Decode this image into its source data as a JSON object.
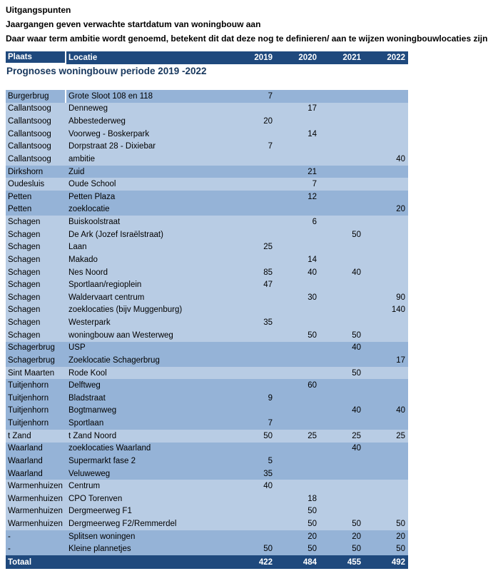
{
  "notes": {
    "line1": "Uitgangspunten",
    "line2": "Jaargangen geven verwachte startdatum van woningbouw aan",
    "line3": "Daar waar term ambitie wordt genoemd, betekent dit dat deze nog te definieren/ aan te wijzen woningbouwlocaties zijn"
  },
  "table": {
    "title": "Prognoses woningbouw periode 2019 -2022",
    "columns": [
      "Plaats",
      "Locatie",
      "2019",
      "2020",
      "2021",
      "2022"
    ],
    "colors": {
      "header_bg": "#1F497D",
      "header_text": "#FFFFFF",
      "row_medium": "#95B3D7",
      "row_light": "#B8CCE4",
      "total_bg": "#1F497D",
      "title_text": "#17375D",
      "body_text": "#000000"
    },
    "rows": [
      {
        "plaats": "Burgerbrug",
        "locatie": "Grote Sloot 108 en 118",
        "y2019": "7",
        "y2020": "",
        "y2021": "",
        "y2022": "",
        "shade": "medium"
      },
      {
        "plaats": "Callantsoog",
        "locatie": "Denneweg",
        "y2019": "",
        "y2020": "17",
        "y2021": "",
        "y2022": "",
        "shade": "light"
      },
      {
        "plaats": "Callantsoog",
        "locatie": "Abbestederweg",
        "y2019": "20",
        "y2020": "",
        "y2021": "",
        "y2022": "",
        "shade": "light"
      },
      {
        "plaats": "Callantsoog",
        "locatie": "Voorweg - Boskerpark",
        "y2019": "",
        "y2020": "14",
        "y2021": "",
        "y2022": "",
        "shade": "light"
      },
      {
        "plaats": "Callantsoog",
        "locatie": "Dorpstraat 28 - Dixiebar",
        "y2019": "7",
        "y2020": "",
        "y2021": "",
        "y2022": "",
        "shade": "light"
      },
      {
        "plaats": "Callantsoog",
        "locatie": "ambitie",
        "y2019": "",
        "y2020": "",
        "y2021": "",
        "y2022": "40",
        "shade": "light"
      },
      {
        "plaats": "Dirkshorn",
        "locatie": "Zuid",
        "y2019": "",
        "y2020": "21",
        "y2021": "",
        "y2022": "",
        "shade": "medium"
      },
      {
        "plaats": "Oudesluis",
        "locatie": "Oude School",
        "y2019": "",
        "y2020": "7",
        "y2021": "",
        "y2022": "",
        "shade": "light"
      },
      {
        "plaats": "Petten",
        "locatie": "Petten Plaza",
        "y2019": "",
        "y2020": "12",
        "y2021": "",
        "y2022": "",
        "shade": "medium"
      },
      {
        "plaats": "Petten",
        "locatie": "zoeklocatie",
        "y2019": "",
        "y2020": "",
        "y2021": "",
        "y2022": "20",
        "shade": "medium"
      },
      {
        "plaats": "Schagen",
        "locatie": "Buiskoolstraat",
        "y2019": "",
        "y2020": "6",
        "y2021": "",
        "y2022": "",
        "shade": "light"
      },
      {
        "plaats": "Schagen",
        "locatie": "De Ark (Jozef Israëlstraat)",
        "y2019": "",
        "y2020": "",
        "y2021": "50",
        "y2022": "",
        "shade": "light"
      },
      {
        "plaats": "Schagen",
        "locatie": "Laan",
        "y2019": "25",
        "y2020": "",
        "y2021": "",
        "y2022": "",
        "shade": "light"
      },
      {
        "plaats": "Schagen",
        "locatie": "Makado",
        "y2019": "",
        "y2020": "14",
        "y2021": "",
        "y2022": "",
        "shade": "light"
      },
      {
        "plaats": "Schagen",
        "locatie": "Nes Noord",
        "y2019": "85",
        "y2020": "40",
        "y2021": "40",
        "y2022": "",
        "shade": "light"
      },
      {
        "plaats": "Schagen",
        "locatie": "Sportlaan/regioplein",
        "y2019": "47",
        "y2020": "",
        "y2021": "",
        "y2022": "",
        "shade": "light"
      },
      {
        "plaats": "Schagen",
        "locatie": "Waldervaart centrum",
        "y2019": "",
        "y2020": "30",
        "y2021": "",
        "y2022": "90",
        "shade": "light"
      },
      {
        "plaats": "Schagen",
        "locatie": "zoeklocaties (bijv Muggenburg)",
        "y2019": "",
        "y2020": "",
        "y2021": "",
        "y2022": "140",
        "shade": "light"
      },
      {
        "plaats": "Schagen",
        "locatie": "Westerpark",
        "y2019": "35",
        "y2020": "",
        "y2021": "",
        "y2022": "",
        "shade": "light"
      },
      {
        "plaats": "Schagen",
        "locatie": "woningbouw  aan Westerweg",
        "y2019": "",
        "y2020": "50",
        "y2021": "50",
        "y2022": "",
        "shade": "light"
      },
      {
        "plaats": "Schagerbrug",
        "locatie": "USP",
        "y2019": "",
        "y2020": "",
        "y2021": "40",
        "y2022": "",
        "shade": "medium"
      },
      {
        "plaats": "Schagerbrug",
        "locatie": "Zoeklocatie Schagerbrug",
        "y2019": "",
        "y2020": "",
        "y2021": "",
        "y2022": "17",
        "shade": "medium"
      },
      {
        "plaats": "Sint Maarten",
        "locatie": "Rode Kool",
        "y2019": "",
        "y2020": "",
        "y2021": "50",
        "y2022": "",
        "shade": "light"
      },
      {
        "plaats": "Tuitjenhorn",
        "locatie": "Delftweg",
        "y2019": "",
        "y2020": "60",
        "y2021": "",
        "y2022": "",
        "shade": "medium"
      },
      {
        "plaats": "Tuitjenhorn",
        "locatie": "Bladstraat",
        "y2019": "9",
        "y2020": "",
        "y2021": "",
        "y2022": "",
        "shade": "medium"
      },
      {
        "plaats": "Tuitjenhorn",
        "locatie": "Bogtmanweg",
        "y2019": "",
        "y2020": "",
        "y2021": "40",
        "y2022": "40",
        "shade": "medium"
      },
      {
        "plaats": "Tuitjenhorn",
        "locatie": "Sportlaan",
        "y2019": "7",
        "y2020": "",
        "y2021": "",
        "y2022": "",
        "shade": "medium"
      },
      {
        "plaats": "t Zand",
        "locatie": "t Zand Noord",
        "y2019": "50",
        "y2020": "25",
        "y2021": "25",
        "y2022": "25",
        "shade": "light"
      },
      {
        "plaats": "Waarland",
        "locatie": "zoeklocaties Waarland",
        "y2019": "",
        "y2020": "",
        "y2021": "40",
        "y2022": "",
        "shade": "medium"
      },
      {
        "plaats": "Waarland",
        "locatie": "Supermarkt fase 2",
        "y2019": "5",
        "y2020": "",
        "y2021": "",
        "y2022": "",
        "shade": "medium"
      },
      {
        "plaats": "Waarland",
        "locatie": "Veluweweg",
        "y2019": "35",
        "y2020": "",
        "y2021": "",
        "y2022": "",
        "shade": "medium"
      },
      {
        "plaats": "Warmenhuizen",
        "locatie": "Centrum",
        "y2019": "40",
        "y2020": "",
        "y2021": "",
        "y2022": "",
        "shade": "light"
      },
      {
        "plaats": "Warmenhuizen",
        "locatie": "CPO Torenven",
        "y2019": "",
        "y2020": "18",
        "y2021": "",
        "y2022": "",
        "shade": "light"
      },
      {
        "plaats": "Warmenhuizen",
        "locatie": "Dergmeerweg F1",
        "y2019": "",
        "y2020": "50",
        "y2021": "",
        "y2022": "",
        "shade": "light"
      },
      {
        "plaats": "Warmenhuizen",
        "locatie": "Dergmeerweg F2/Remmerdel",
        "y2019": "",
        "y2020": "50",
        "y2021": "50",
        "y2022": "50",
        "shade": "light"
      },
      {
        "plaats": "-",
        "locatie": "Splitsen woningen",
        "y2019": "",
        "y2020": "20",
        "y2021": "20",
        "y2022": "20",
        "shade": "medium"
      },
      {
        "plaats": "-",
        "locatie": "Kleine plannetjes",
        "y2019": "50",
        "y2020": "50",
        "y2021": "50",
        "y2022": "50",
        "shade": "medium"
      }
    ],
    "total": {
      "label": "Totaal",
      "y2019": "422",
      "y2020": "484",
      "y2021": "455",
      "y2022": "492"
    }
  }
}
